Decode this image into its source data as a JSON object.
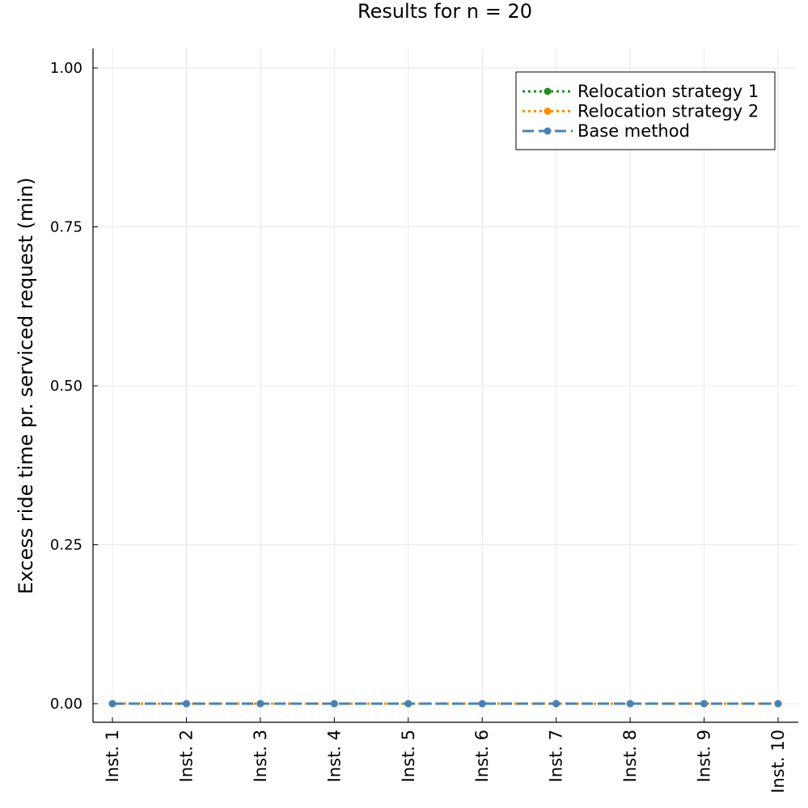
{
  "chart_data": {
    "type": "line",
    "title": "Results for n = 20",
    "xlabel": "",
    "ylabel": "Excess ride time pr. serviced request (min)",
    "categories": [
      "Inst. 1",
      "Inst. 2",
      "Inst. 3",
      "Inst. 4",
      "Inst. 5",
      "Inst. 6",
      "Inst. 7",
      "Inst. 8",
      "Inst. 9",
      "Inst. 10"
    ],
    "ylim": [
      0,
      1
    ],
    "yticks": [
      "0.00",
      "0.25",
      "0.50",
      "0.75",
      "1.00"
    ],
    "ytick_values": [
      0,
      0.25,
      0.5,
      0.75,
      1.0
    ],
    "grid": true,
    "legend_position": "top-right",
    "series": [
      {
        "name": "Relocation strategy 1",
        "color": "#228b22",
        "style": "dotted",
        "values": [
          0,
          0,
          0,
          0,
          0,
          0,
          0,
          0,
          0,
          0
        ]
      },
      {
        "name": "Relocation strategy 2",
        "color": "#ff8c00",
        "style": "dotted",
        "values": [
          0,
          0,
          0,
          0,
          0,
          0,
          0,
          0,
          0,
          0
        ]
      },
      {
        "name": "Base method",
        "color": "#4682b4",
        "style": "dashed",
        "values": [
          0,
          0,
          0,
          0,
          0,
          0,
          0,
          0,
          0,
          0
        ]
      }
    ]
  }
}
